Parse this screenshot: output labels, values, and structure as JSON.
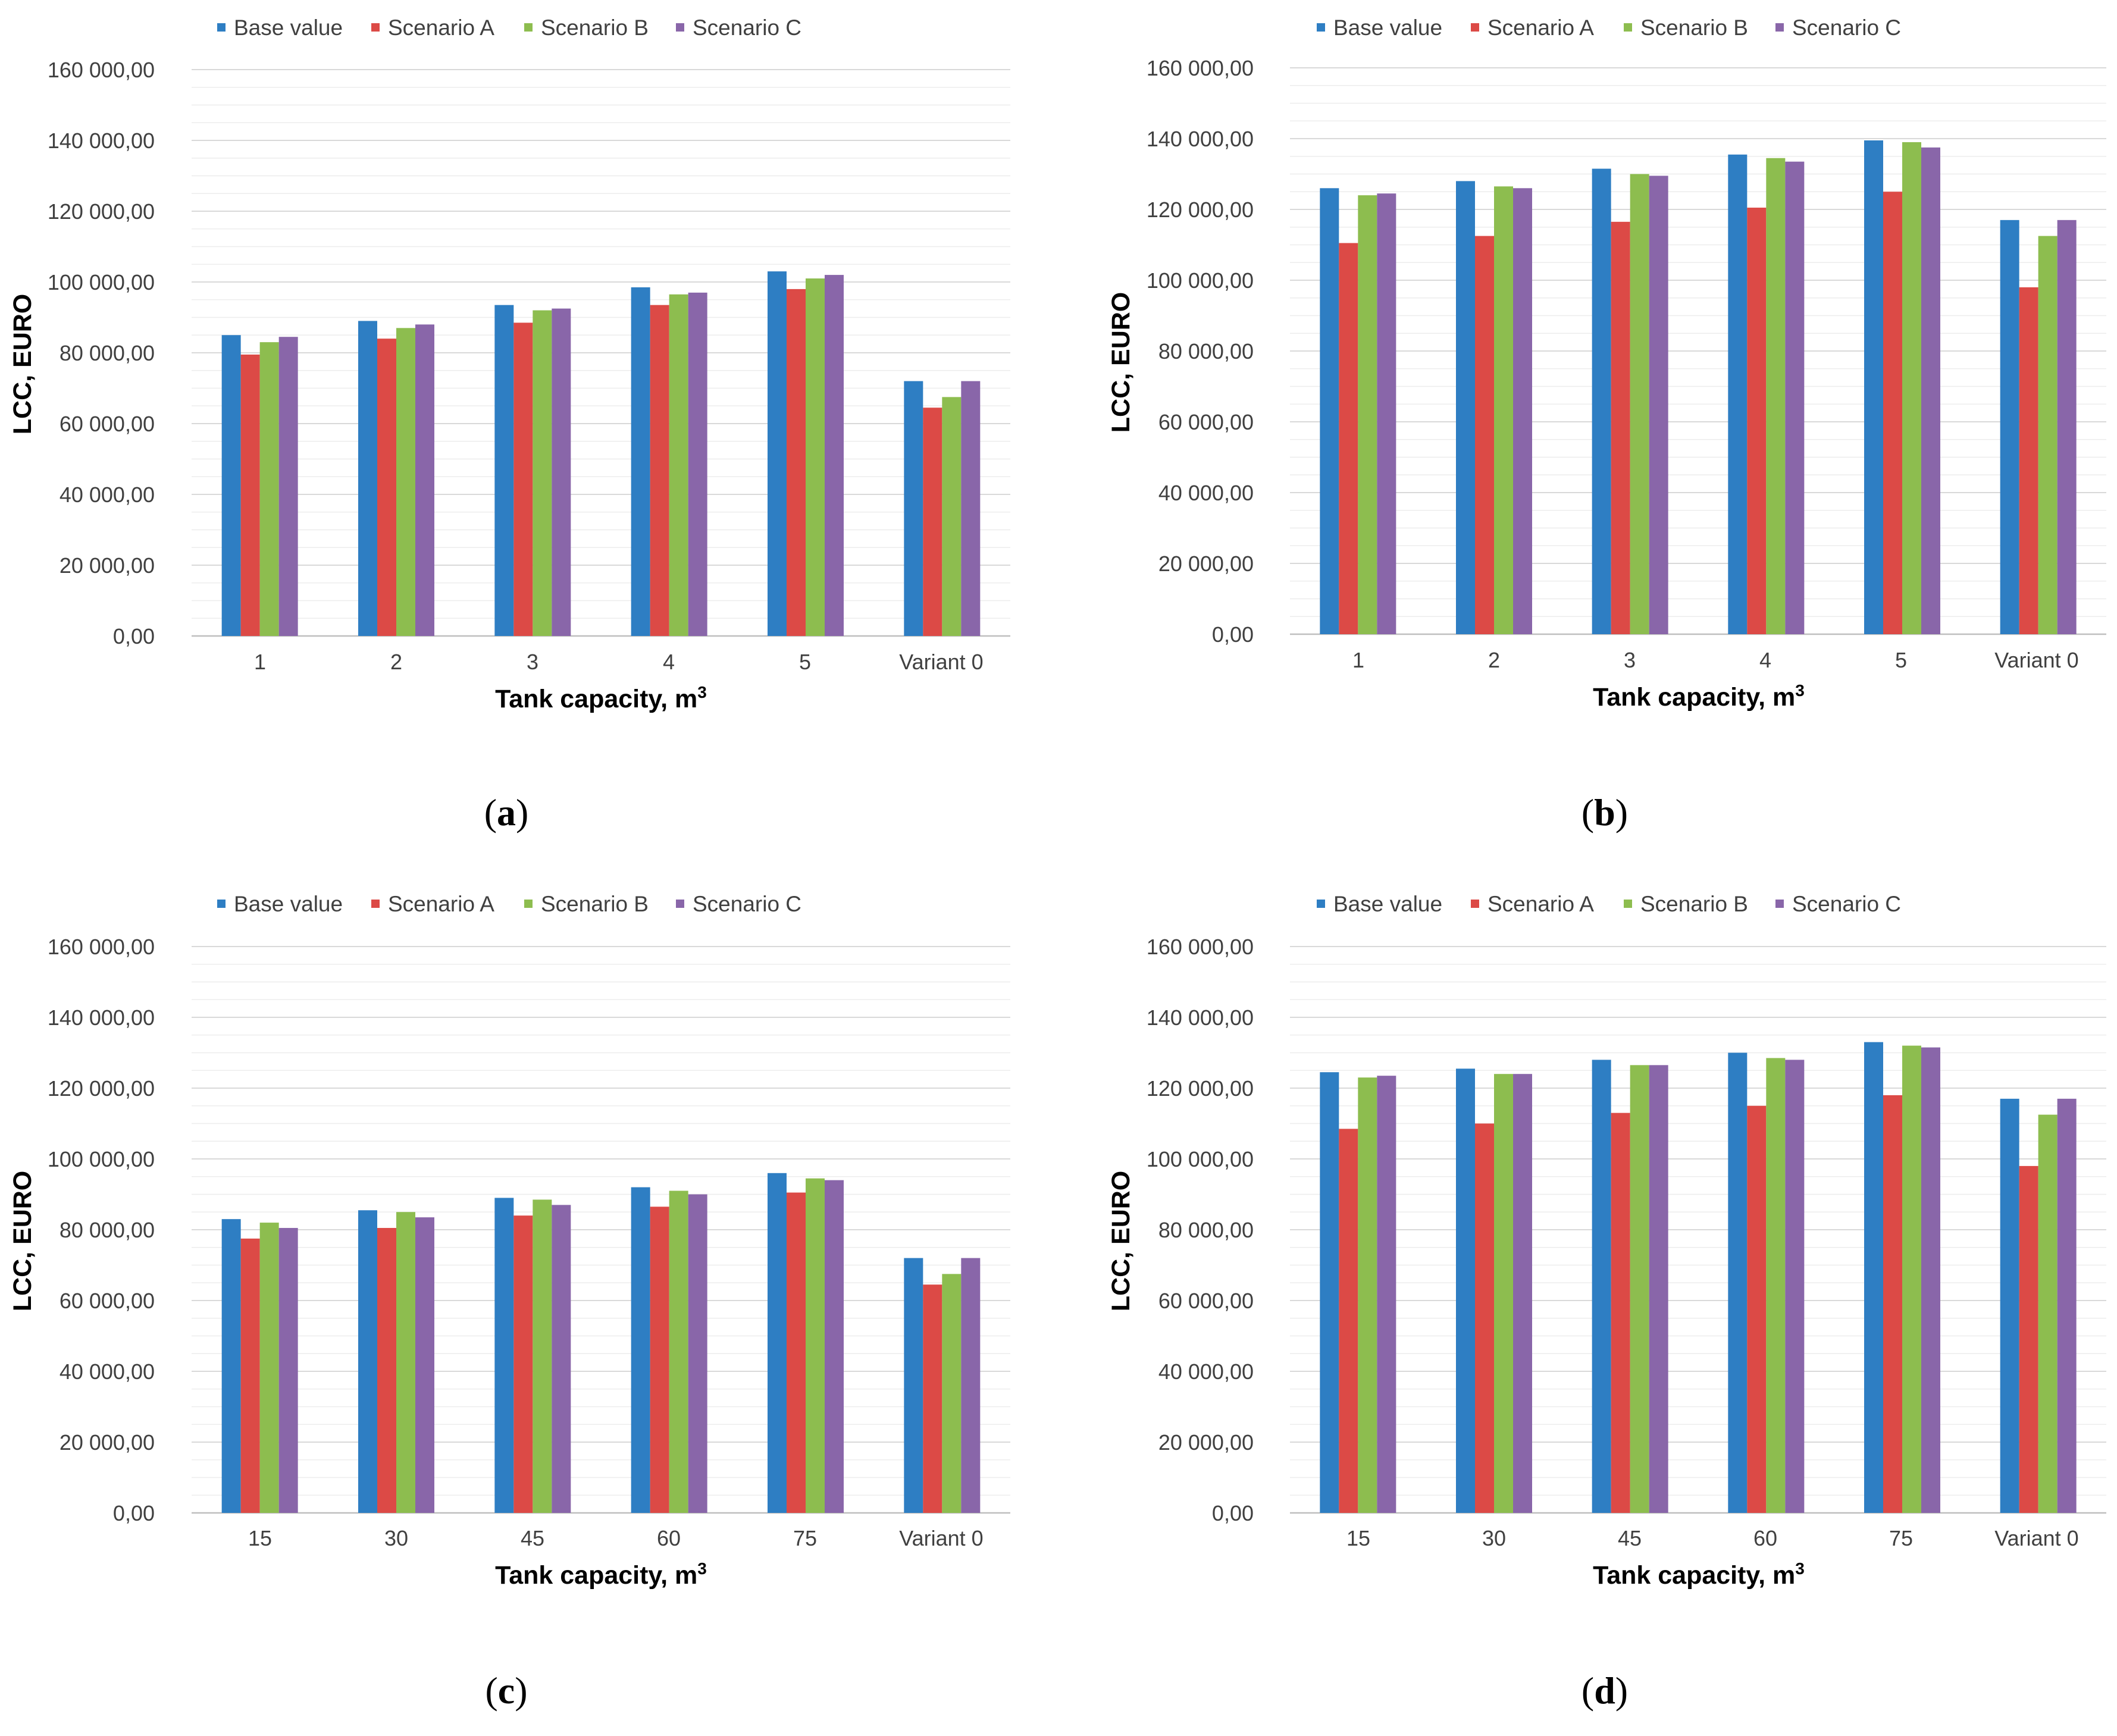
{
  "colors": {
    "base": "#2E7EC3",
    "scenario_a": "#DC4A46",
    "scenario_b": "#8DBD4F",
    "scenario_c": "#8966A9",
    "major_grid": "#D9D9D9",
    "minor_grid": "#EDEDED",
    "axis": "#BFBFBF"
  },
  "chart_data": [
    {
      "type": "bar",
      "panel_label": "a",
      "legend": [
        "Base value",
        "Scenario A",
        "Scenario B",
        "Scenario C"
      ],
      "categories": [
        "1",
        "2",
        "3",
        "4",
        "5",
        "Variant 0"
      ],
      "xlabel": "Tank capacity, m",
      "xlabel_superscript": "3",
      "ylabel": "LCC, EURO",
      "ylim": [
        0,
        160000
      ],
      "yticks": [
        "0,00",
        "20 000,00",
        "40 000,00",
        "60 000,00",
        "80 000,00",
        "100 000,00",
        "120 000,00",
        "140 000,00",
        "160 000,00"
      ],
      "series": [
        {
          "name": "Base value",
          "values": [
            85000,
            89000,
            93500,
            98500,
            103000,
            72000
          ]
        },
        {
          "name": "Scenario A",
          "values": [
            79500,
            84000,
            88500,
            93500,
            98000,
            64500
          ]
        },
        {
          "name": "Scenario B",
          "values": [
            83000,
            87000,
            92000,
            96500,
            101000,
            67500
          ]
        },
        {
          "name": "Scenario C",
          "values": [
            84500,
            88000,
            92500,
            97000,
            102000,
            72000
          ]
        }
      ]
    },
    {
      "type": "bar",
      "panel_label": "b",
      "legend": [
        "Base value",
        "Scenario A",
        "Scenario B",
        "Scenario C"
      ],
      "categories": [
        "1",
        "2",
        "3",
        "4",
        "5",
        "Variant 0"
      ],
      "xlabel": "Tank capacity, m",
      "xlabel_superscript": "3",
      "ylabel": "LCC, EURO",
      "ylim": [
        0,
        160000
      ],
      "yticks": [
        "0,00",
        "20 000,00",
        "40 000,00",
        "60 000,00",
        "80 000,00",
        "100 000,00",
        "120 000,00",
        "140 000,00",
        "160 000,00"
      ],
      "series": [
        {
          "name": "Base value",
          "values": [
            126000,
            128000,
            131500,
            135500,
            139500,
            117000
          ]
        },
        {
          "name": "Scenario A",
          "values": [
            110500,
            112500,
            116500,
            120500,
            125000,
            98000
          ]
        },
        {
          "name": "Scenario B",
          "values": [
            124000,
            126500,
            130000,
            134500,
            139000,
            112500
          ]
        },
        {
          "name": "Scenario C",
          "values": [
            124500,
            126000,
            129500,
            133500,
            137500,
            117000
          ]
        }
      ]
    },
    {
      "type": "bar",
      "panel_label": "c",
      "legend": [
        "Base value",
        "Scenario A",
        "Scenario B",
        "Scenario C"
      ],
      "categories": [
        "15",
        "30",
        "45",
        "60",
        "75",
        "Variant 0"
      ],
      "xlabel": "Tank capacity, m",
      "xlabel_superscript": "3",
      "ylabel": "LCC, EURO",
      "ylim": [
        0,
        160000
      ],
      "yticks": [
        "0,00",
        "20 000,00",
        "40 000,00",
        "60 000,00",
        "80 000,00",
        "100 000,00",
        "120 000,00",
        "140 000,00",
        "160 000,00"
      ],
      "series": [
        {
          "name": "Base value",
          "values": [
            83000,
            85500,
            89000,
            92000,
            96000,
            72000
          ]
        },
        {
          "name": "Scenario A",
          "values": [
            77500,
            80500,
            84000,
            86500,
            90500,
            64500
          ]
        },
        {
          "name": "Scenario B",
          "values": [
            82000,
            85000,
            88500,
            91000,
            94500,
            67500
          ]
        },
        {
          "name": "Scenario C",
          "values": [
            80500,
            83500,
            87000,
            90000,
            94000,
            72000
          ]
        }
      ]
    },
    {
      "type": "bar",
      "panel_label": "d",
      "legend": [
        "Base value",
        "Scenario A",
        "Scenario B",
        "Scenario C"
      ],
      "categories": [
        "15",
        "30",
        "45",
        "60",
        "75",
        "Variant 0"
      ],
      "xlabel": "Tank capacity, m",
      "xlabel_superscript": "3",
      "ylabel": "LCC, EURO",
      "ylim": [
        0,
        160000
      ],
      "yticks": [
        "0,00",
        "20 000,00",
        "40 000,00",
        "60 000,00",
        "80 000,00",
        "100 000,00",
        "120 000,00",
        "140 000,00",
        "160 000,00"
      ],
      "series": [
        {
          "name": "Base value",
          "values": [
            124500,
            125500,
            128000,
            130000,
            133000,
            117000
          ]
        },
        {
          "name": "Scenario A",
          "values": [
            108500,
            110000,
            113000,
            115000,
            118000,
            98000
          ]
        },
        {
          "name": "Scenario B",
          "values": [
            123000,
            124000,
            126500,
            128500,
            132000,
            112500
          ]
        },
        {
          "name": "Scenario C",
          "values": [
            123500,
            124000,
            126500,
            128000,
            131500,
            117000
          ]
        }
      ]
    }
  ]
}
